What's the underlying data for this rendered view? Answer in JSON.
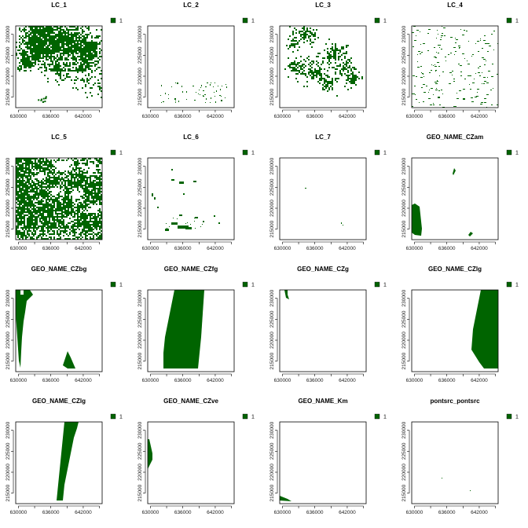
{
  "colors": {
    "fill": "#006400",
    "frame": "#000000",
    "background": "#ffffff"
  },
  "chart_data": [
    {
      "type": "heatmap",
      "title": "LC_1",
      "legend": "1",
      "xticks": [
        "630000",
        "636000",
        "642000"
      ],
      "yticks": [
        "215000",
        "220000",
        "225000",
        "230000"
      ],
      "xlim": [
        629500,
        645500
      ],
      "ylim": [
        212500,
        232000
      ]
    },
    {
      "type": "heatmap",
      "title": "LC_2",
      "legend": "1",
      "xticks": [
        "630000",
        "636000",
        "642000"
      ],
      "yticks": [
        "215000",
        "220000",
        "225000",
        "230000"
      ],
      "xlim": [
        629500,
        645500
      ],
      "ylim": [
        212500,
        232000
      ]
    },
    {
      "type": "heatmap",
      "title": "LC_3",
      "legend": "1",
      "xticks": [
        "630000",
        "636000",
        "642000"
      ],
      "yticks": [
        "215000",
        "220000",
        "225000",
        "230000"
      ],
      "xlim": [
        629500,
        645500
      ],
      "ylim": [
        212500,
        232000
      ]
    },
    {
      "type": "heatmap",
      "title": "LC_4",
      "legend": "1",
      "xticks": [
        "630000",
        "636000",
        "642000"
      ],
      "yticks": [
        "215000",
        "220000",
        "225000",
        "230000"
      ],
      "xlim": [
        629500,
        645500
      ],
      "ylim": [
        212500,
        232000
      ]
    },
    {
      "type": "heatmap",
      "title": "LC_5",
      "legend": "1",
      "xticks": [
        "630000",
        "636000",
        "642000"
      ],
      "yticks": [
        "215000",
        "220000",
        "225000",
        "230000"
      ],
      "xlim": [
        629500,
        645500
      ],
      "ylim": [
        212500,
        232000
      ]
    },
    {
      "type": "heatmap",
      "title": "LC_6",
      "legend": "1",
      "xticks": [
        "630000",
        "636000",
        "642000"
      ],
      "yticks": [
        "215000",
        "220000",
        "225000",
        "230000"
      ],
      "xlim": [
        629500,
        645500
      ],
      "ylim": [
        212500,
        232000
      ]
    },
    {
      "type": "heatmap",
      "title": "LC_7",
      "legend": "1",
      "xticks": [
        "630000",
        "636000",
        "642000"
      ],
      "yticks": [
        "215000",
        "220000",
        "225000",
        "230000"
      ],
      "xlim": [
        629500,
        645500
      ],
      "ylim": [
        212500,
        232000
      ]
    },
    {
      "type": "heatmap",
      "title": "GEO_NAME_CZam",
      "legend": "1",
      "xticks": [
        "630000",
        "636000",
        "642000"
      ],
      "yticks": [
        "215000",
        "220000",
        "225000",
        "230000"
      ],
      "xlim": [
        629500,
        645500
      ],
      "ylim": [
        212500,
        232000
      ]
    },
    {
      "type": "heatmap",
      "title": "GEO_NAME_CZbg",
      "legend": "1",
      "xticks": [
        "630000",
        "636000",
        "642000"
      ],
      "yticks": [
        "215000",
        "220000",
        "225000",
        "230000"
      ],
      "xlim": [
        629500,
        645500
      ],
      "ylim": [
        212500,
        232000
      ]
    },
    {
      "type": "heatmap",
      "title": "GEO_NAME_CZfg",
      "legend": "1",
      "xticks": [
        "630000",
        "636000",
        "642000"
      ],
      "yticks": [
        "215000",
        "220000",
        "225000",
        "230000"
      ],
      "xlim": [
        629500,
        645500
      ],
      "ylim": [
        212500,
        232000
      ]
    },
    {
      "type": "heatmap",
      "title": "GEO_NAME_CZg",
      "legend": "1",
      "xticks": [
        "630000",
        "636000",
        "642000"
      ],
      "yticks": [
        "215000",
        "220000",
        "225000",
        "230000"
      ],
      "xlim": [
        629500,
        645500
      ],
      "ylim": [
        212500,
        232000
      ]
    },
    {
      "type": "heatmap",
      "title": "GEO_NAME_CZlg",
      "legend": "1",
      "xticks": [
        "630000",
        "636000",
        "642000"
      ],
      "yticks": [
        "215000",
        "220000",
        "225000",
        "230000"
      ],
      "xlim": [
        629500,
        645500
      ],
      "ylim": [
        212500,
        232000
      ]
    },
    {
      "type": "heatmap",
      "title": "GEO_NAME_CZlg",
      "legend": "1",
      "xticks": [
        "630000",
        "636000",
        "642000"
      ],
      "yticks": [
        "215000",
        "220000",
        "225000",
        "230000"
      ],
      "xlim": [
        629500,
        645500
      ],
      "ylim": [
        212500,
        232000
      ]
    },
    {
      "type": "heatmap",
      "title": "GEO_NAME_CZve",
      "legend": "1",
      "xticks": [
        "630000",
        "636000",
        "642000"
      ],
      "yticks": [
        "215000",
        "220000",
        "225000",
        "230000"
      ],
      "xlim": [
        629500,
        645500
      ],
      "ylim": [
        212500,
        232000
      ]
    },
    {
      "type": "heatmap",
      "title": "GEO_NAME_Km",
      "legend": "1",
      "xticks": [
        "630000",
        "636000",
        "642000"
      ],
      "yticks": [
        "215000",
        "220000",
        "225000",
        "230000"
      ],
      "xlim": [
        629500,
        645500
      ],
      "ylim": [
        212500,
        232000
      ]
    },
    {
      "type": "heatmap",
      "title": "pontsrc_pontsrc",
      "legend": "1",
      "xticks": [
        "630000",
        "636000",
        "642000"
      ],
      "yticks": [
        "215000",
        "220000",
        "225000",
        "230000"
      ],
      "xlim": [
        629500,
        645500
      ],
      "ylim": [
        212500,
        232000
      ]
    }
  ]
}
